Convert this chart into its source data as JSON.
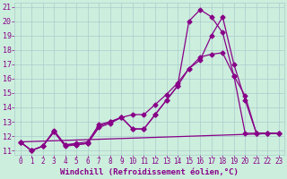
{
  "xlabel": "Windchill (Refroidissement éolien,°C)",
  "bg_color": "#cceedd",
  "line_color": "#880088",
  "xlim": [
    -0.5,
    23.5
  ],
  "ylim": [
    10.7,
    21.3
  ],
  "xticks": [
    0,
    1,
    2,
    3,
    4,
    5,
    6,
    7,
    8,
    9,
    10,
    11,
    12,
    13,
    14,
    15,
    16,
    17,
    18,
    19,
    20,
    21,
    22,
    23
  ],
  "yticks": [
    11,
    12,
    13,
    14,
    15,
    16,
    17,
    18,
    19,
    20,
    21
  ],
  "series1_x": [
    0,
    1,
    2,
    3,
    4,
    5,
    6,
    7,
    8,
    9,
    10,
    11,
    12,
    13,
    14,
    15,
    16,
    17,
    18,
    19,
    20,
    21,
    22,
    23
  ],
  "series1_y": [
    11.6,
    11.0,
    11.3,
    12.3,
    11.4,
    11.5,
    11.6,
    12.8,
    13.0,
    13.3,
    12.5,
    12.5,
    13.5,
    14.5,
    15.5,
    16.7,
    17.5,
    17.7,
    17.8,
    16.2,
    14.8,
    12.2,
    12.2,
    12.2
  ],
  "series2_x": [
    0,
    1,
    2,
    3,
    4,
    5,
    6,
    7,
    8,
    9,
    10,
    11,
    12,
    13,
    14,
    15,
    16,
    17,
    18,
    19,
    20,
    21,
    22,
    23
  ],
  "series2_y": [
    11.6,
    11.0,
    11.3,
    12.3,
    11.3,
    11.4,
    11.5,
    12.6,
    12.9,
    13.3,
    13.5,
    13.5,
    14.2,
    14.9,
    15.7,
    16.7,
    17.3,
    19.0,
    20.3,
    17.0,
    14.5,
    12.2,
    12.2,
    12.2
  ],
  "series3_x": [
    0,
    1,
    2,
    3,
    4,
    5,
    6,
    7,
    8,
    9,
    10,
    11,
    12,
    13,
    14,
    15,
    16,
    17,
    18,
    19,
    20,
    21,
    22,
    23
  ],
  "series3_y": [
    11.6,
    11.0,
    11.3,
    12.4,
    11.4,
    11.4,
    11.5,
    12.7,
    13.0,
    13.3,
    12.5,
    12.5,
    13.5,
    14.5,
    15.5,
    20.0,
    20.8,
    20.3,
    19.2,
    16.2,
    12.2,
    12.2,
    12.2,
    12.2
  ],
  "series4_x": [
    0,
    23
  ],
  "series4_y": [
    11.6,
    12.2
  ],
  "font_color": "#880088",
  "grid_color": "#aacccc",
  "tick_fontsize": 5.5,
  "xlabel_fontsize": 6.5
}
